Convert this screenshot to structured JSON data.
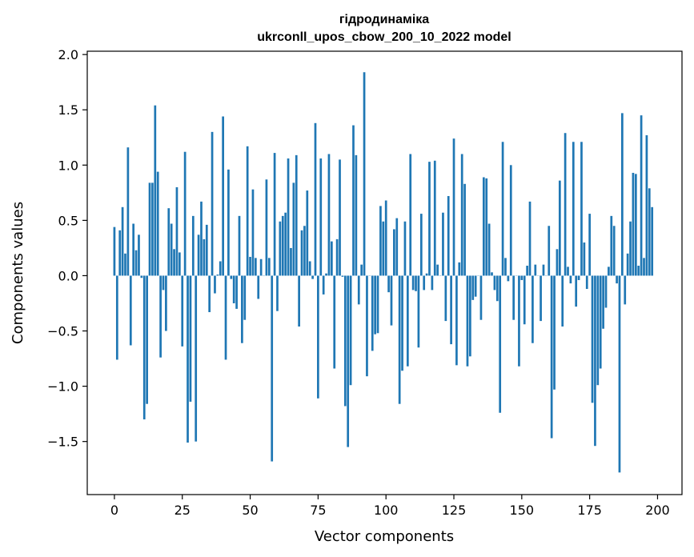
{
  "chart_data": {
    "type": "bar",
    "title": "гідродинаміка",
    "subtitle": "ukrconll_upos_cbow_200_10_2022 model",
    "xlabel": "Vector components",
    "ylabel": "Components values",
    "xlim": [
      -10,
      209
    ],
    "ylim": [
      -1.98,
      2.03
    ],
    "xticks": [
      0,
      25,
      50,
      75,
      100,
      125,
      150,
      175,
      200
    ],
    "xtick_labels": [
      "0",
      "25",
      "50",
      "75",
      "100",
      "125",
      "150",
      "175",
      "200"
    ],
    "yticks": [
      -1.5,
      -1.0,
      -0.5,
      0.0,
      0.5,
      1.0,
      1.5,
      2.0
    ],
    "ytick_labels": [
      "−1.5",
      "−1.0",
      "−0.5",
      "0.0",
      "0.5",
      "1.0",
      "1.5",
      "2.0"
    ],
    "grid": false,
    "bar_color": "#1f77b4",
    "values": [
      0.44,
      -0.76,
      0.41,
      0.62,
      0.2,
      1.16,
      -0.63,
      0.47,
      0.23,
      0.37,
      -0.02,
      -1.3,
      -1.16,
      0.84,
      0.84,
      1.54,
      0.94,
      -0.74,
      -0.13,
      -0.5,
      0.61,
      0.47,
      0.24,
      0.8,
      0.21,
      -0.64,
      1.12,
      -1.51,
      -1.14,
      0.54,
      -1.5,
      0.37,
      0.67,
      0.33,
      0.46,
      -0.33,
      1.3,
      -0.16,
      0.01,
      0.13,
      1.44,
      -0.76,
      0.96,
      -0.03,
      -0.25,
      -0.3,
      0.54,
      -0.61,
      -0.4,
      1.17,
      0.17,
      0.78,
      0.16,
      -0.21,
      0.15,
      0.0,
      0.87,
      0.16,
      -1.68,
      1.11,
      -0.32,
      0.49,
      0.54,
      0.57,
      1.06,
      0.25,
      0.84,
      1.09,
      -0.46,
      0.41,
      0.45,
      0.77,
      0.13,
      -0.03,
      1.38,
      -1.11,
      1.06,
      -0.17,
      0.02,
      1.1,
      0.31,
      -0.84,
      0.33,
      1.05,
      -0.01,
      -1.18,
      -1.55,
      -0.99,
      1.36,
      1.09,
      -0.26,
      0.1,
      1.84,
      -0.91,
      0.0,
      -0.68,
      -0.53,
      -0.52,
      0.63,
      0.49,
      0.68,
      -0.15,
      -0.45,
      0.42,
      0.52,
      -1.16,
      -0.86,
      0.49,
      -0.82,
      1.1,
      -0.13,
      -0.14,
      -0.65,
      0.56,
      -0.13,
      0.02,
      1.03,
      -0.13,
      1.04,
      0.1,
      0.0,
      0.57,
      -0.41,
      0.72,
      -0.62,
      1.24,
      -0.81,
      0.12,
      1.1,
      0.83,
      -0.82,
      -0.73,
      -0.22,
      -0.19,
      0.0,
      -0.4,
      0.89,
      0.88,
      0.47,
      0.03,
      -0.13,
      -0.23,
      -1.24,
      1.21,
      0.16,
      -0.05,
      1.0,
      -0.4,
      0.0,
      -0.82,
      -0.04,
      -0.44,
      0.09,
      0.67,
      -0.61,
      0.1,
      0.0,
      -0.41,
      0.1,
      0.0,
      0.45,
      -1.47,
      -1.03,
      0.24,
      0.86,
      -0.46,
      1.29,
      0.08,
      -0.07,
      1.21,
      -0.28,
      -0.04,
      1.21,
      0.3,
      -0.12,
      0.56,
      -1.15,
      -1.54,
      -0.99,
      -0.84,
      -0.48,
      -0.29,
      0.08,
      0.54,
      0.45,
      -0.07,
      -1.78,
      1.47,
      -0.26,
      0.2,
      0.49,
      0.93,
      0.92,
      0.09,
      1.45,
      0.16,
      1.27,
      0.79,
      0.62
    ]
  }
}
